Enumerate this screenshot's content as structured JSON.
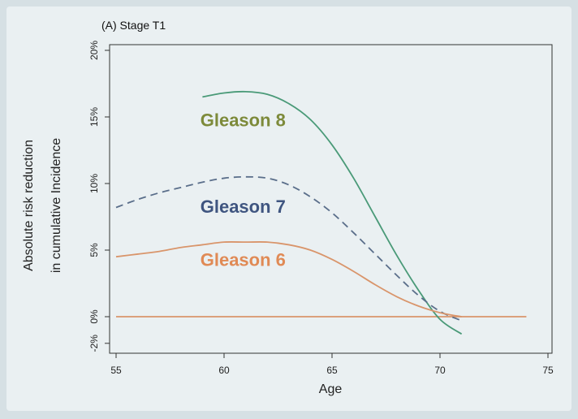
{
  "chart_data": {
    "type": "line",
    "title": "(A) Stage T1",
    "xlabel": "Age",
    "ylabel_lines": [
      "Absolute risk reduction",
      "in cumulative Incidence"
    ],
    "xlim": [
      55,
      75
    ],
    "ylim": [
      -2,
      20
    ],
    "xticks": [
      55,
      60,
      65,
      70,
      75
    ],
    "xtick_labels": [
      "55",
      "60",
      "65",
      "70",
      "75"
    ],
    "yticks": [
      -2,
      0,
      5,
      10,
      15,
      20
    ],
    "ytick_labels": [
      "-2%",
      "0%",
      "5%",
      "10%",
      "15%",
      "20%"
    ],
    "grid": false,
    "legend": "direct labels",
    "series": [
      {
        "name": "Gleason 8",
        "color": "#4a9a78",
        "dash": "solid",
        "x": [
          59,
          60,
          61,
          62,
          63,
          64,
          65,
          66,
          67,
          68,
          69,
          70,
          71
        ],
        "y": [
          16.5,
          16.8,
          16.9,
          16.7,
          16.0,
          14.8,
          12.9,
          10.4,
          7.5,
          4.6,
          2.0,
          -0.2,
          -1.3
        ]
      },
      {
        "name": "Gleason 7",
        "color": "#5a6e8a",
        "dash": "dashed",
        "x": [
          55,
          56,
          57,
          58,
          59,
          60,
          61,
          62,
          63,
          64,
          65,
          66,
          67,
          68,
          69,
          70,
          71
        ],
        "y": [
          8.2,
          8.8,
          9.3,
          9.7,
          10.1,
          10.4,
          10.5,
          10.4,
          9.9,
          9.0,
          7.8,
          6.3,
          4.7,
          3.1,
          1.6,
          0.4,
          -0.3
        ]
      },
      {
        "name": "Gleason 6",
        "color": "#d9956b",
        "dash": "solid",
        "x": [
          55,
          56,
          57,
          58,
          59,
          60,
          61,
          62,
          63,
          64,
          65,
          66,
          67,
          68,
          69,
          70,
          71
        ],
        "y": [
          4.5,
          4.7,
          4.9,
          5.2,
          5.4,
          5.6,
          5.6,
          5.6,
          5.4,
          5.0,
          4.3,
          3.4,
          2.4,
          1.5,
          0.8,
          0.3,
          0.0
        ]
      },
      {
        "name": "",
        "color": "#d9956b",
        "dash": "solid",
        "x": [
          55,
          74
        ],
        "y": [
          0,
          0
        ]
      }
    ],
    "label_colors": {
      "Gleason 8": "#7d8a3a",
      "Gleason 7": "#3f5580",
      "Gleason 6": "#e08a55"
    }
  }
}
